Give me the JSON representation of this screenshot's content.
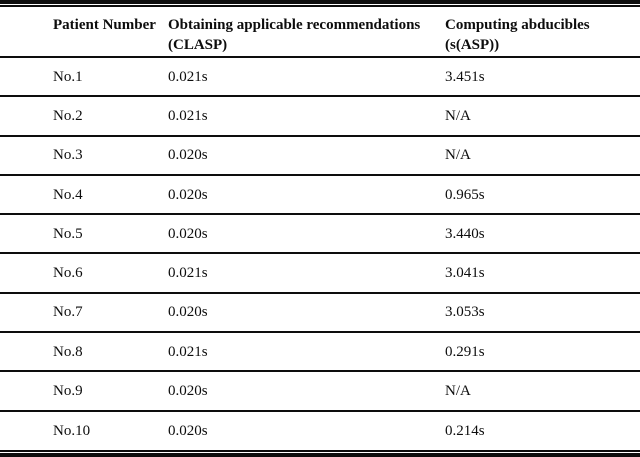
{
  "table": {
    "columns": [
      {
        "line1": "Patient Number",
        "line2": ""
      },
      {
        "line1": "Obtaining applicable recommendations",
        "line2": "(CLASP)"
      },
      {
        "line1": "Computing abducibles",
        "line2": "(s(ASP))"
      }
    ],
    "rows": [
      {
        "patient": "No.1",
        "clasp": "0.021s",
        "sasp": "3.451s"
      },
      {
        "patient": "No.2",
        "clasp": "0.021s",
        "sasp": "N/A"
      },
      {
        "patient": "No.3",
        "clasp": "0.020s",
        "sasp": "N/A"
      },
      {
        "patient": "No.4",
        "clasp": "0.020s",
        "sasp": "0.965s"
      },
      {
        "patient": "No.5",
        "clasp": "0.020s",
        "sasp": "3.440s"
      },
      {
        "patient": "No.6",
        "clasp": "0.021s",
        "sasp": "3.041s"
      },
      {
        "patient": "No.7",
        "clasp": "0.020s",
        "sasp": "3.053s"
      },
      {
        "patient": "No.8",
        "clasp": "0.021s",
        "sasp": "0.291s"
      },
      {
        "patient": "No.9",
        "clasp": "0.020s",
        "sasp": "N/A"
      },
      {
        "patient": "No.10",
        "clasp": "0.020s",
        "sasp": "0.214s"
      }
    ]
  },
  "colors": {
    "rule": "#0d0d0d",
    "text": "#0d0d0d",
    "background": "#ffffff"
  },
  "chart_data": {
    "type": "table",
    "title": "",
    "columns": [
      "Patient Number",
      "Obtaining applicable recommendations (CLASP)",
      "Computing abducibles (s(ASP))"
    ],
    "rows": [
      [
        "No.1",
        "0.021s",
        "3.451s"
      ],
      [
        "No.2",
        "0.021s",
        "N/A"
      ],
      [
        "No.3",
        "0.020s",
        "N/A"
      ],
      [
        "No.4",
        "0.020s",
        "0.965s"
      ],
      [
        "No.5",
        "0.020s",
        "3.440s"
      ],
      [
        "No.6",
        "0.021s",
        "3.041s"
      ],
      [
        "No.7",
        "0.020s",
        "3.053s"
      ],
      [
        "No.8",
        "0.021s",
        "0.291s"
      ],
      [
        "No.9",
        "0.020s",
        "N/A"
      ],
      [
        "No.10",
        "0.020s",
        "0.214s"
      ]
    ]
  }
}
